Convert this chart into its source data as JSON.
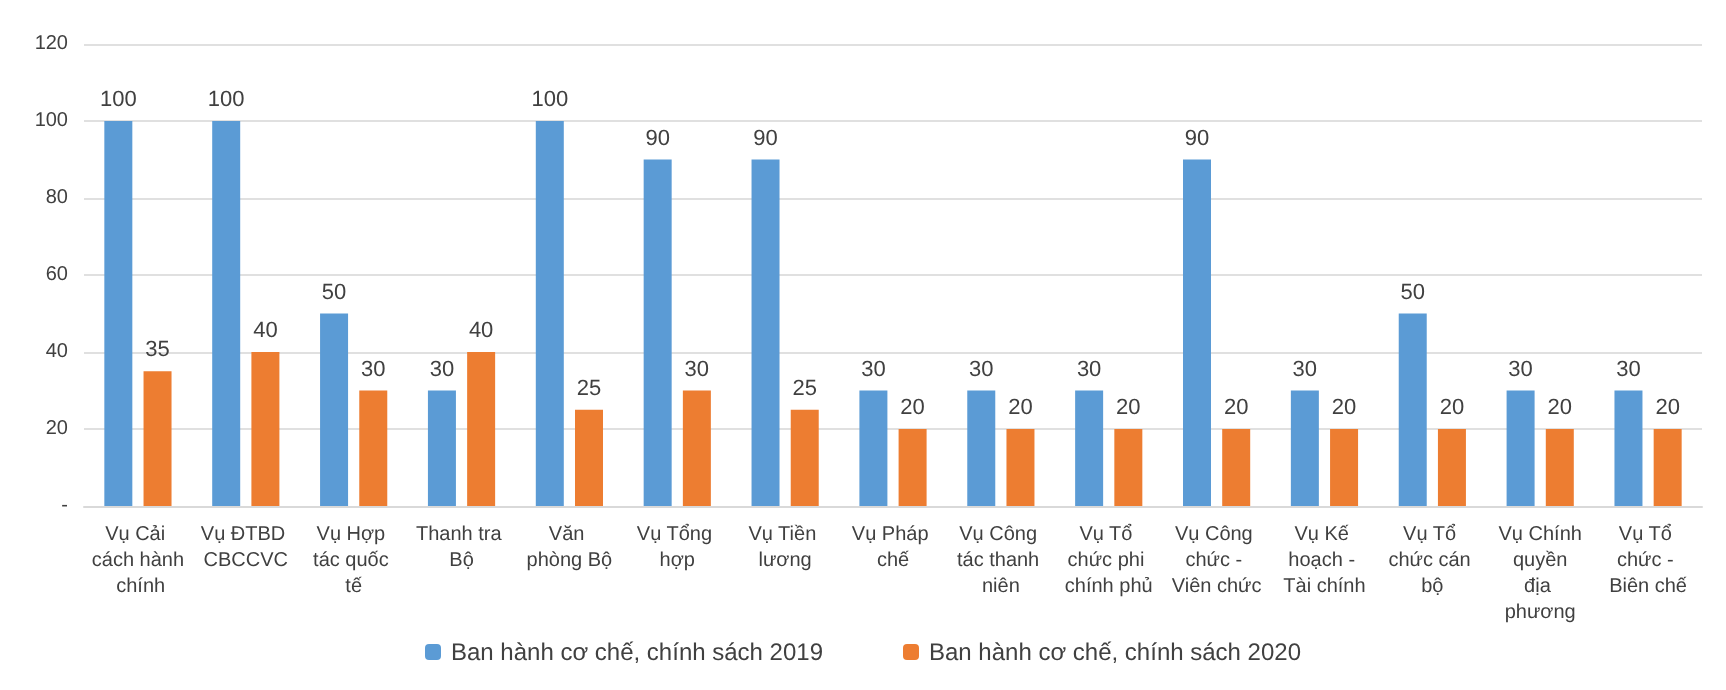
{
  "chart_data": {
    "type": "bar",
    "categories": [
      "Vụ Cải cách hành chính",
      "Vụ ĐTBD CBCCVC",
      "Vụ Hợp tác quốc tế",
      "Thanh tra Bộ",
      "Văn phòng Bộ",
      "Vụ Tổng hợp",
      "Vụ Tiền lương",
      "Vụ Pháp chế",
      "Vụ Công tác thanh niên",
      "Vụ Tổ chức phi chính phủ",
      "Vụ Công chức - Viên chức",
      "Vụ Kế hoạch - Tài chính",
      "Vụ Tổ chức cán bộ",
      "Vụ Chính quyền địa phương",
      "Vụ Tổ chức - Biên chế"
    ],
    "series": [
      {
        "name": "Ban hành cơ chế, chính sách 2019",
        "color": "#5b9bd5",
        "values": [
          100,
          100,
          50,
          30,
          100,
          90,
          90,
          30,
          30,
          30,
          90,
          30,
          50,
          30,
          30
        ]
      },
      {
        "name": "Ban hành cơ chế, chính sách 2020",
        "color": "#ed7d31",
        "values": [
          35,
          40,
          30,
          40,
          25,
          30,
          25,
          20,
          20,
          20,
          20,
          20,
          20,
          20,
          20
        ]
      }
    ],
    "ylim": [
      0,
      120
    ],
    "yticks": [
      {
        "value": 0,
        "label": "-"
      },
      20,
      40,
      60,
      80,
      100,
      120
    ],
    "grid": "y",
    "legend": "bottom",
    "data_labels": true
  }
}
